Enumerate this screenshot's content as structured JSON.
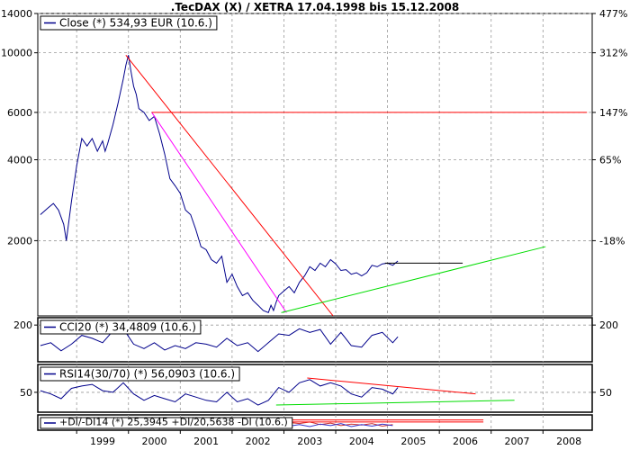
{
  "chart_data": {
    "type": "line",
    "title": ".TecDAX (X) / XETRA 17.04.1998 bis 15.12.2008",
    "x_year_labels": [
      "1999",
      "2000",
      "2001",
      "2002",
      "2003",
      "2004",
      "2005",
      "2006",
      "2007",
      "2008"
    ],
    "x_year_values": [
      1999,
      2000,
      2001,
      2002,
      2003,
      2004,
      2005,
      2006,
      2007,
      2008
    ],
    "x_range": [
      1998.25,
      2008.95
    ],
    "colors": {
      "price": "#00008b",
      "trend_red": "#ff0000",
      "trend_magenta": "#ff00ff",
      "trend_green": "#00dd00",
      "trend_black": "#000000"
    },
    "panels": [
      {
        "id": "price",
        "scale": "log",
        "ylim": [
          1050,
          14000
        ],
        "left_ticks": [
          {
            "label": "14000",
            "value": 14000
          },
          {
            "label": "10000",
            "value": 10000
          },
          {
            "label": "6000",
            "value": 6000
          },
          {
            "label": "4000",
            "value": 4000
          },
          {
            "label": "2000",
            "value": 2000
          }
        ],
        "right_ticks": [
          {
            "label": "477%",
            "value": 14000
          },
          {
            "label": "312%",
            "value": 10000
          },
          {
            "label": "147%",
            "value": 6000
          },
          {
            "label": "65%",
            "value": 4000
          },
          {
            "label": "-18%",
            "value": 2000
          }
        ],
        "legend": "Close (*) 534,93 EUR (10.6.)",
        "series": [
          {
            "x": [
              1998.3,
              1998.45,
              1998.55,
              1998.65,
              1998.75,
              1998.8,
              1998.9,
              1999.0,
              1999.1,
              1999.2,
              1999.3,
              1999.4,
              1999.5,
              1999.55,
              1999.6,
              1999.7,
              1999.8,
              1999.9,
              1999.95,
              2000.0,
              2000.05,
              2000.1,
              2000.15,
              2000.2,
              2000.3,
              2000.4,
              2000.5,
              2000.6,
              2000.7,
              2000.8,
              2000.9,
              2001.0,
              2001.1,
              2001.2,
              2001.3,
              2001.4,
              2001.5,
              2001.6,
              2001.7,
              2001.8,
              2001.9,
              2002.0,
              2002.1,
              2002.2,
              2002.3,
              2002.4,
              2002.5,
              2002.6,
              2002.7,
              2002.75,
              2002.8,
              2002.85,
              2002.9,
              2003.0,
              2003.1,
              2003.2,
              2003.3,
              2003.4,
              2003.5,
              2003.6,
              2003.7,
              2003.8,
              2003.9,
              2004.0,
              2004.1,
              2004.2,
              2004.3,
              2004.4,
              2004.5,
              2004.6,
              2004.7,
              2004.8,
              2004.9,
              2005.0,
              2005.1,
              2005.2
            ],
            "y": [
              2500,
              2650,
              2750,
              2600,
              2300,
              2000,
              2800,
              3800,
              4800,
              4500,
              4800,
              4300,
              4700,
              4300,
              4600,
              5400,
              6500,
              8000,
              9000,
              9800,
              8500,
              7500,
              7000,
              6200,
              6000,
              5600,
              5800,
              5000,
              4200,
              3400,
              3200,
              3000,
              2600,
              2500,
              2200,
              1900,
              1850,
              1700,
              1650,
              1750,
              1400,
              1500,
              1350,
              1250,
              1280,
              1200,
              1150,
              1100,
              1080,
              1150,
              1100,
              1180,
              1250,
              1300,
              1350,
              1280,
              1400,
              1480,
              1600,
              1550,
              1650,
              1600,
              1700,
              1640,
              1550,
              1560,
              1500,
              1520,
              1480,
              1520,
              1620,
              1600,
              1640,
              1650,
              1620,
              1680
            ]
          }
        ],
        "trendlines": [
          {
            "color": "red",
            "from": [
              1999.95,
              9800
            ],
            "to": [
              2003.95,
              1050
            ]
          },
          {
            "color": "magenta",
            "from": [
              2000.45,
              6000
            ],
            "to": [
              2003.05,
              1080
            ]
          },
          {
            "color": "red",
            "from": [
              2000.45,
              6000
            ],
            "to": [
              2008.85,
              6000
            ]
          },
          {
            "color": "green",
            "from": [
              2002.95,
              1080
            ],
            "to": [
              2008.05,
              1900
            ]
          },
          {
            "color": "black",
            "from": [
              2004.95,
              1650
            ],
            "to": [
              2006.45,
              1650
            ]
          }
        ]
      },
      {
        "id": "cci",
        "scale": "linear",
        "ylim": [
          -300,
          300
        ],
        "left_ticks": [
          {
            "label": "200",
            "value": 200
          }
        ],
        "right_ticks": [
          {
            "label": "200",
            "value": 200
          }
        ],
        "legend": "CCI20 (*) 34,4809 (10.6.)",
        "series": [
          {
            "x": [
              1998.3,
              1998.5,
              1998.7,
              1998.9,
              1999.1,
              1999.3,
              1999.5,
              1999.7,
              1999.9,
              2000.1,
              2000.3,
              2000.5,
              2000.7,
              2000.9,
              2001.1,
              2001.3,
              2001.5,
              2001.7,
              2001.9,
              2002.1,
              2002.3,
              2002.5,
              2002.7,
              2002.9,
              2003.1,
              2003.3,
              2003.5,
              2003.7,
              2003.9,
              2004.1,
              2004.3,
              2004.5,
              2004.7,
              2004.9,
              2005.1,
              2005.2
            ],
            "y": [
              -80,
              -40,
              -150,
              -60,
              60,
              20,
              -40,
              120,
              150,
              -60,
              -120,
              -40,
              -140,
              -80,
              -120,
              -40,
              -60,
              -100,
              20,
              -80,
              -40,
              -160,
              -40,
              80,
              60,
              150,
              100,
              140,
              -60,
              100,
              -80,
              -100,
              60,
              100,
              -40,
              40
            ]
          }
        ]
      },
      {
        "id": "rsi",
        "scale": "linear",
        "ylim": [
          25,
          85
        ],
        "left_ticks": [
          {
            "label": "50",
            "value": 50
          }
        ],
        "right_ticks": [
          {
            "label": "50",
            "value": 50
          }
        ],
        "legend": "RSI14(30/70) (*) 56,0903 (10.6.)",
        "series": [
          {
            "x": [
              1998.3,
              1998.5,
              1998.7,
              1998.9,
              1999.1,
              1999.3,
              1999.5,
              1999.7,
              1999.9,
              2000.1,
              2000.3,
              2000.5,
              2000.7,
              2000.9,
              2001.1,
              2001.3,
              2001.5,
              2001.7,
              2001.9,
              2002.1,
              2002.3,
              2002.5,
              2002.7,
              2002.9,
              2003.1,
              2003.3,
              2003.5,
              2003.7,
              2003.9,
              2004.1,
              2004.3,
              2004.5,
              2004.7,
              2004.9,
              2005.1,
              2005.2
            ],
            "y": [
              52,
              48,
              42,
              55,
              58,
              60,
              52,
              50,
              62,
              48,
              40,
              46,
              42,
              38,
              48,
              44,
              40,
              38,
              50,
              38,
              42,
              34,
              40,
              56,
              50,
              62,
              66,
              58,
              62,
              58,
              48,
              44,
              56,
              54,
              48,
              56
            ]
          }
        ],
        "trendlines": [
          {
            "color": "red",
            "from": [
              2003.45,
              68
            ],
            "to": [
              2006.7,
              48
            ]
          },
          {
            "color": "green",
            "from": [
              2002.85,
              34
            ],
            "to": [
              2007.45,
              40
            ]
          }
        ]
      },
      {
        "id": "dmi",
        "scale": "linear",
        "ylim": [
          0,
          60
        ],
        "legend": "+DI/-DI14 (*) 25,3945 +DI/20,5638 -DI (10.6.)",
        "series": [
          {
            "x": [
              2003.1,
              2003.3,
              2003.5,
              2003.7,
              2003.9,
              2004.1,
              2004.3,
              2004.5,
              2004.7,
              2004.9,
              2005.1
            ],
            "y": [
              30,
              26,
              32,
              22,
              28,
              18,
              24,
              20,
              26,
              16,
              22
            ]
          },
          {
            "x": [
              2003.1,
              2003.3,
              2003.5,
              2003.7,
              2003.9,
              2004.1,
              2004.3,
              2004.5,
              2004.7,
              2004.9,
              2005.1
            ],
            "y": [
              16,
              22,
              14,
              24,
              18,
              26,
              14,
              22,
              16,
              24,
              18
            ]
          }
        ],
        "trendlines": [
          {
            "color": "red",
            "from": [
              2003.05,
              40
            ],
            "to": [
              2006.85,
              40
            ]
          },
          {
            "color": "red",
            "from": [
              2003.05,
              32
            ],
            "to": [
              2006.85,
              32
            ]
          }
        ]
      }
    ]
  }
}
